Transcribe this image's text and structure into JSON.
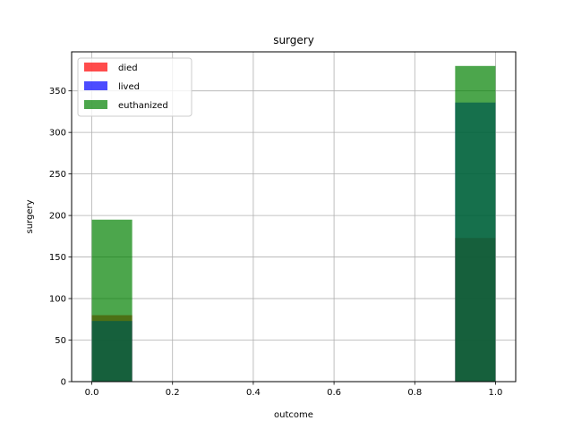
{
  "chart_data": {
    "type": "bar",
    "title": "surgery",
    "xlabel": "outcome",
    "ylabel": "surgery",
    "xlim": [
      -0.05,
      1.05
    ],
    "ylim": [
      0,
      397
    ],
    "xticks": [
      0.0,
      0.2,
      0.4,
      0.6,
      0.8,
      1.0
    ],
    "xtick_labels": [
      "0.0",
      "0.2",
      "0.4",
      "0.6",
      "0.8",
      "1.0"
    ],
    "yticks": [
      0,
      50,
      100,
      150,
      200,
      250,
      300,
      350
    ],
    "ytick_labels": [
      "0",
      "50",
      "100",
      "150",
      "200",
      "250",
      "300",
      "350"
    ],
    "grid": true,
    "legend_position": "top-left",
    "bin_edges": [
      [
        0.0,
        0.1
      ],
      [
        0.9,
        1.0
      ]
    ],
    "series": [
      {
        "name": "died",
        "color": "#ff0000",
        "values": [
          80,
          173
        ]
      },
      {
        "name": "lived",
        "color": "#0000ff",
        "values": [
          73,
          336
        ]
      },
      {
        "name": "euthanized",
        "color": "#008000",
        "values": [
          195,
          380
        ]
      }
    ]
  }
}
